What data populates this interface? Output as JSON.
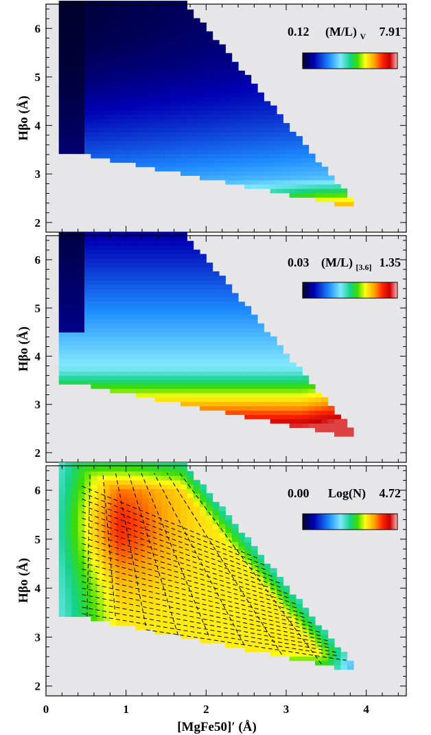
{
  "figure": {
    "xlabel_main": "[MgFe50]",
    "xlabel_prime": "′",
    "xlabel_unit": " (Å)",
    "x_ticks": [
      "0",
      "1",
      "2",
      "3",
      "4"
    ]
  },
  "chart_data": [
    {
      "type": "heatmap",
      "ylabel": "Hβo (Å)",
      "xlim": [
        0,
        4.5
      ],
      "ylim": [
        1.8,
        6.5
      ],
      "y_ticks": [
        "2",
        "3",
        "4",
        "5",
        "6"
      ],
      "x_ticks": [
        "0",
        "1",
        "2",
        "3",
        "4"
      ],
      "colorbar": {
        "min_label": "0.12",
        "max_label": "7.91",
        "quantity": "(M/L)",
        "subscript": "V",
        "min": 0.12,
        "max": 7.91,
        "colormap": "rainbow"
      },
      "grid": false,
      "legend": "top-right colorbar"
    },
    {
      "type": "heatmap",
      "ylabel": "Hβo (Å)",
      "xlim": [
        0,
        4.5
      ],
      "ylim": [
        1.8,
        6.5
      ],
      "y_ticks": [
        "2",
        "3",
        "4",
        "5",
        "6"
      ],
      "x_ticks": [
        "0",
        "1",
        "2",
        "3",
        "4"
      ],
      "colorbar": {
        "min_label": "0.03",
        "max_label": "1.35",
        "quantity": "(M/L)",
        "subscript": "[3.6]",
        "min": 0.03,
        "max": 1.35,
        "colormap": "rainbow"
      },
      "grid": false,
      "legend": "top-right colorbar"
    },
    {
      "type": "heatmap",
      "ylabel": "Hβo (Å)",
      "xlabel": "[MgFe50]′ (Å)",
      "xlim": [
        0,
        4.5
      ],
      "ylim": [
        1.8,
        6.5
      ],
      "y_ticks": [
        "2",
        "3",
        "4",
        "5",
        "6"
      ],
      "x_ticks": [
        "0",
        "1",
        "2",
        "3",
        "4"
      ],
      "colorbar": {
        "min_label": "0.00",
        "max_label": "4.72",
        "quantity": "Log(N)",
        "subscript": "",
        "min": 0.0,
        "max": 4.72,
        "colormap": "rainbow"
      },
      "overlay": "dashed model grid",
      "grid": false,
      "legend": "top-right colorbar"
    }
  ]
}
